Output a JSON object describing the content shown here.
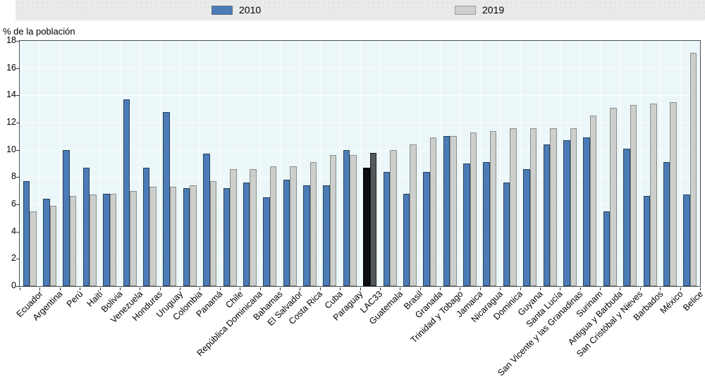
{
  "colors": {
    "page_bg": "#ffffff",
    "plot_bg": "#ecf7f9",
    "frame": "#4d5254",
    "gridline": "rgba(255,255,255,0.85)",
    "bar_2010": "#4c7cb8",
    "bar_2010_border": "#26415c",
    "bar_2019": "#cdcfcc",
    "bar_2019_border": "#8a8e8b",
    "lac33_2010": "#0b0d0f",
    "lac33_2010_border": "#000000",
    "lac33_2019": "#53585b",
    "lac33_2019_border": "#1b1d1e",
    "legend_band_bg": "#e9ebea"
  },
  "chart_data": {
    "type": "bar",
    "title": "",
    "ylabel": "% de la población",
    "xlabel": "",
    "ylim": [
      0,
      18
    ],
    "ytick_labels": [
      "0",
      "2",
      "4",
      "6",
      "8",
      "10",
      "12",
      "14",
      "16",
      "18"
    ],
    "grid": "white vertical and horizontal gridlines on light blue panel",
    "legend_position": "top",
    "highlight_category": "LAC33",
    "categories": [
      "Ecuador",
      "Argentina",
      "Perú",
      "Haití",
      "Bolivia",
      "Venezuela",
      "Honduras",
      "Uruguay",
      "Colombia",
      "Panamá",
      "Chile",
      "República Dominicana",
      "Bahamas",
      "El Salvador",
      "Costa Rica",
      "Cuba",
      "Paraguay",
      "LAC33",
      "Guatemala",
      "Brasil",
      "Granada",
      "Trinidad y Tobago",
      "Jamaica",
      "Nicaragua",
      "Dominica",
      "Guyana",
      "Santa Lucía",
      "San Vicente y las Granadinas",
      "Surinam",
      "Antigua y Barbuda",
      "San Cristóbal y Nieves",
      "Barbados",
      "México",
      "Belice"
    ],
    "series": [
      {
        "name": "2010",
        "color": "#4c7cb8",
        "values": [
          7.7,
          6.4,
          10.0,
          8.7,
          6.8,
          13.7,
          8.7,
          12.8,
          7.2,
          9.7,
          7.2,
          7.6,
          6.5,
          7.8,
          7.4,
          7.4,
          10.0,
          8.7,
          8.4,
          6.8,
          8.4,
          11.0,
          9.0,
          9.1,
          7.6,
          8.6,
          10.4,
          10.7,
          10.9,
          5.5,
          10.1,
          6.6,
          9.1,
          6.7
        ]
      },
      {
        "name": "2019",
        "color": "#cdcfcc",
        "values": [
          5.5,
          5.9,
          6.6,
          6.7,
          6.8,
          7.0,
          7.3,
          7.3,
          7.4,
          7.7,
          8.6,
          8.6,
          8.8,
          8.8,
          9.1,
          9.6,
          9.6,
          9.8,
          10.0,
          10.4,
          10.9,
          11.0,
          11.3,
          11.4,
          11.6,
          11.6,
          11.6,
          11.6,
          12.5,
          13.1,
          13.3,
          13.4,
          13.5,
          17.1
        ]
      }
    ]
  }
}
